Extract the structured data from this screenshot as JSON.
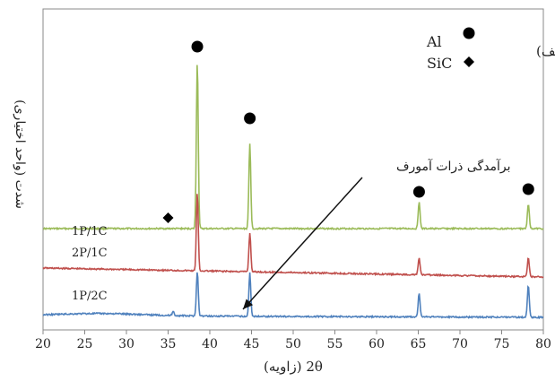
{
  "chart_data": {
    "type": "line",
    "xlabel": "2θ (زاویه)",
    "ylabel": "شدت (واحد اختیاری)",
    "panel_label": "(الف)",
    "xlim": [
      20,
      80
    ],
    "x_ticks": [
      20,
      25,
      30,
      35,
      40,
      45,
      50,
      55,
      60,
      65,
      70,
      75,
      80
    ],
    "legend": [
      {
        "marker": "circle",
        "label": "Al"
      },
      {
        "marker": "diamond",
        "label": "SiC"
      }
    ],
    "annotation": "برآمدگی ذرات آمورف",
    "series": [
      {
        "name": "1P/1C",
        "color": "#9bbb59",
        "baseline": 1.0,
        "peaks": [
          {
            "x": 38.5,
            "height": 6.0
          },
          {
            "x": 44.8,
            "height": 3.05
          },
          {
            "x": 65.1,
            "height": 0.95
          },
          {
            "x": 78.2,
            "height": 0.9
          }
        ]
      },
      {
        "name": "2P/1C",
        "color": "#c0504d",
        "baseline": 1.0,
        "peaks": [
          {
            "x": 38.5,
            "height": 2.8
          },
          {
            "x": 44.8,
            "height": 1.4
          },
          {
            "x": 65.1,
            "height": 0.6
          },
          {
            "x": 78.2,
            "height": 0.7
          }
        ]
      },
      {
        "name": "1P/2C",
        "color": "#4f81bd",
        "baseline": 1.0,
        "peaks": [
          {
            "x": 35.6,
            "height": 0.15
          },
          {
            "x": 38.5,
            "height": 1.6
          },
          {
            "x": 44.8,
            "height": 1.55
          },
          {
            "x": 65.1,
            "height": 0.85
          },
          {
            "x": 78.2,
            "height": 1.15
          }
        ]
      }
    ],
    "peak_markers": [
      {
        "phase": "Al",
        "x": 38.5
      },
      {
        "phase": "Al",
        "x": 44.8
      },
      {
        "phase": "Al",
        "x": 65.1
      },
      {
        "phase": "Al",
        "x": 78.2
      },
      {
        "phase": "SiC",
        "x": 35.0
      }
    ]
  }
}
